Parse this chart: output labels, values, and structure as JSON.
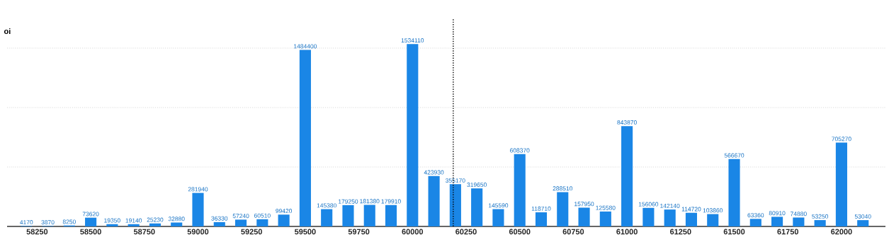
{
  "chart_data": {
    "type": "bar",
    "ylabel": "oi",
    "x": [
      58200,
      58300,
      58400,
      58500,
      58600,
      58700,
      58800,
      58900,
      59000,
      59100,
      59200,
      59300,
      59400,
      59500,
      59600,
      59700,
      59800,
      59900,
      60000,
      60100,
      60200,
      60300,
      60400,
      60500,
      60600,
      60700,
      60800,
      60900,
      61000,
      61100,
      61200,
      61300,
      61400,
      61500,
      61600,
      61700,
      61800,
      61900,
      62000,
      62100
    ],
    "values": [
      4170,
      3870,
      8250,
      73620,
      19350,
      19140,
      25230,
      32880,
      281940,
      36330,
      57240,
      60510,
      99420,
      1484400,
      145380,
      179250,
      181380,
      179910,
      1534110,
      423930,
      355170,
      319650,
      145590,
      608370,
      118710,
      288510,
      157950,
      125580,
      843870,
      156060,
      142140,
      114720,
      103860,
      566670,
      63360,
      80910,
      74880,
      53250,
      705270,
      53040
    ],
    "color": "#1a86e6",
    "data_labels": true,
    "xlim": [
      58110,
      62205
    ],
    "xticks": [
      58250,
      58500,
      58750,
      59000,
      59250,
      59500,
      59750,
      60000,
      60250,
      60500,
      60750,
      61000,
      61250,
      61500,
      61750,
      62000
    ],
    "ylim": [
      0,
      1750000
    ],
    "yticks": [
      {
        "value": 500000,
        "label": null
      },
      {
        "value": 1000000,
        "label": null
      },
      {
        "value": 1500000,
        "label": null
      }
    ],
    "grid": "y",
    "ref_lines": [
      {
        "axis": "x",
        "value": 60190,
        "line_style": "dotted",
        "color": "#000000"
      }
    ]
  }
}
